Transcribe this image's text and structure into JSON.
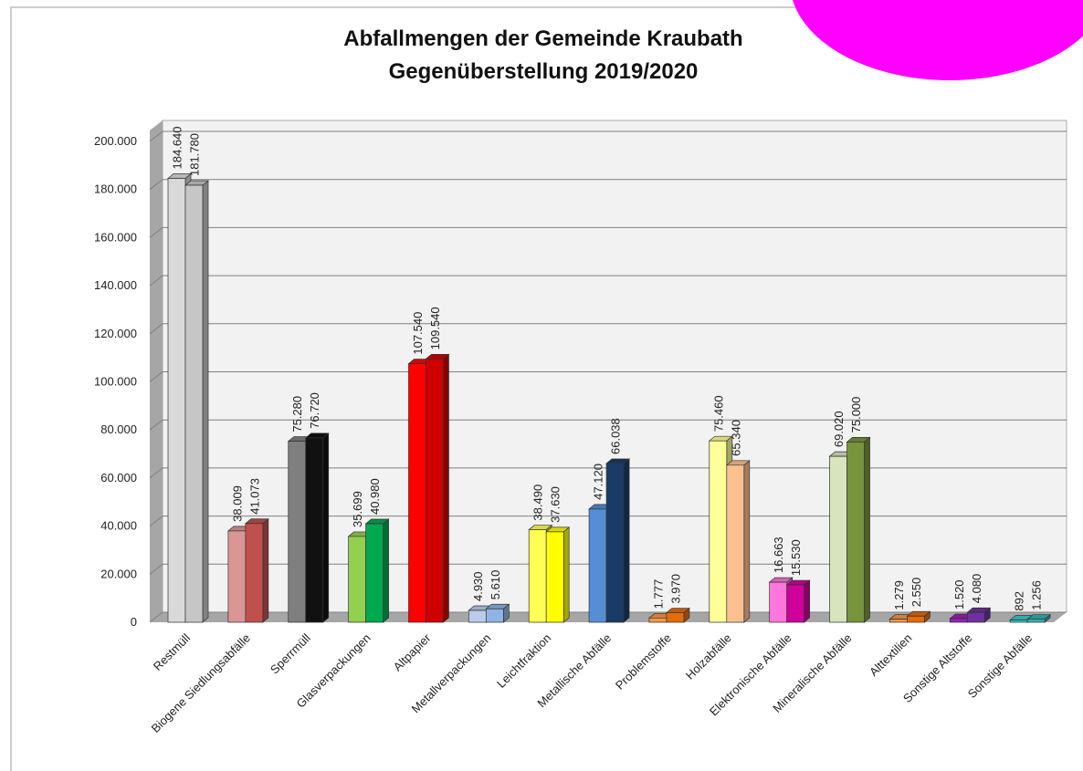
{
  "chart_data": {
    "type": "bar3d",
    "title": [
      "Abfallmengen der Gemeinde Kraubath",
      "Gegenüberstellung 2019/2020"
    ],
    "categories": [
      "Restmüll",
      "Biogene Siedlungsabfälle",
      "Sperrmüll",
      "Glasverpackungen",
      "Altpapier",
      "Metallverpackungen",
      "Leichtfraktion",
      "Metallische Abfälle",
      "Problemstoffe",
      "Holzabfälle",
      "Elektronische Abfälle",
      "Mineralische Abfälle",
      "Alttextilien",
      "Sonstige Altstoffe",
      "Sonstige Abfälle"
    ],
    "series": [
      {
        "colors": [
          "#d9d9d9",
          "#d99694",
          "#7f7f7f",
          "#92d050",
          "#ff0000",
          "#b9cdea",
          "#ffff55",
          "#558ed5",
          "#f79646",
          "#ffff99",
          "#ff77dd",
          "#d7e4bd",
          "#f79646",
          "#9b1fb8",
          "#33cccc"
        ],
        "values": [
          184640,
          38009,
          75280,
          35699,
          107540,
          4930,
          38490,
          47120,
          1777,
          75460,
          16663,
          69020,
          1279,
          1520,
          892
        ],
        "value_labels": [
          "184.640",
          "38.009",
          "75.280",
          "35.699",
          "107.540",
          "4.930",
          "38.490",
          "47.120",
          "1.777",
          "75.460",
          "16.663",
          "69.020",
          "1.279",
          "1.520",
          "892"
        ]
      },
      {
        "colors": [
          "#c6c6c6",
          "#c0504d",
          "#111111",
          "#00a84f",
          "#d00000",
          "#8eb4e3",
          "#ffff00",
          "#1a3b66",
          "#e46c0a",
          "#fac090",
          "#d0009a",
          "#77933c",
          "#e46c0a",
          "#7030a0",
          "#2fb3b3"
        ],
        "values": [
          181780,
          41073,
          76720,
          40980,
          109540,
          5610,
          37630,
          66038,
          3970,
          65340,
          15530,
          75000,
          2550,
          4080,
          1256
        ],
        "value_labels": [
          "181.780",
          "41.073",
          "76.720",
          "40.980",
          "109.540",
          "5.610",
          "37.630",
          "66.038",
          "3.970",
          "65.340",
          "15.530",
          "75.000",
          "2.550",
          "4.080",
          "1.256"
        ]
      }
    ],
    "ylim": [
      0,
      200000
    ],
    "yticks": [
      0,
      {
        "value": 20000,
        "label": "20.000"
      },
      {
        "value": 40000,
        "label": "40.000"
      },
      {
        "value": 60000,
        "label": "60.000"
      },
      {
        "value": 80000,
        "label": "80.000"
      },
      {
        "value": 100000,
        "label": "100.000"
      },
      {
        "value": 120000,
        "label": "120.000"
      },
      {
        "value": 140000,
        "label": "140.000"
      },
      {
        "value": 160000,
        "label": "160.000"
      },
      {
        "value": 180000,
        "label": "180.000"
      },
      {
        "value": 200000,
        "label": "200.000"
      }
    ],
    "grid": true
  }
}
